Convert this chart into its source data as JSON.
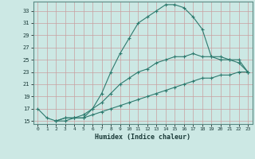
{
  "xlabel": "Humidex (Indice chaleur)",
  "background_color": "#cce8e4",
  "grid_color": "#b0d4d0",
  "line_color": "#2d7a6e",
  "xlim": [
    -0.5,
    23.5
  ],
  "ylim": [
    14.5,
    34.5
  ],
  "xticks": [
    0,
    1,
    2,
    3,
    4,
    5,
    6,
    7,
    8,
    9,
    10,
    11,
    12,
    13,
    14,
    15,
    16,
    17,
    18,
    19,
    20,
    21,
    22,
    23
  ],
  "yticks": [
    15,
    17,
    19,
    21,
    23,
    25,
    27,
    29,
    31,
    33
  ],
  "series1": [
    [
      0,
      17
    ],
    [
      1,
      15.5
    ],
    [
      2,
      15
    ],
    [
      3,
      15
    ],
    [
      4,
      15.5
    ],
    [
      5,
      15.5
    ],
    [
      6,
      17
    ],
    [
      7,
      19.5
    ],
    [
      8,
      23
    ],
    [
      9,
      26
    ],
    [
      10,
      28.5
    ],
    [
      11,
      31
    ],
    [
      12,
      32
    ],
    [
      13,
      33
    ],
    [
      14,
      34
    ],
    [
      15,
      34
    ],
    [
      16,
      33.5
    ],
    [
      17,
      32
    ],
    [
      18,
      30
    ],
    [
      19,
      25.5
    ],
    [
      20,
      25
    ],
    [
      21,
      25
    ],
    [
      22,
      24.5
    ],
    [
      23,
      23
    ]
  ],
  "series2": [
    [
      2,
      15
    ],
    [
      3,
      15.5
    ],
    [
      4,
      15.5
    ],
    [
      5,
      16
    ],
    [
      6,
      17
    ],
    [
      7,
      18
    ],
    [
      8,
      19.5
    ],
    [
      9,
      21
    ],
    [
      10,
      22
    ],
    [
      11,
      23
    ],
    [
      12,
      23.5
    ],
    [
      13,
      24.5
    ],
    [
      14,
      25
    ],
    [
      15,
      25.5
    ],
    [
      16,
      25.5
    ],
    [
      17,
      26
    ],
    [
      18,
      25.5
    ],
    [
      19,
      25.5
    ],
    [
      20,
      25.5
    ],
    [
      21,
      25
    ],
    [
      22,
      25
    ],
    [
      23,
      23
    ]
  ],
  "series3": [
    [
      2,
      15
    ],
    [
      3,
      15.5
    ],
    [
      4,
      15.5
    ],
    [
      5,
      15.5
    ],
    [
      6,
      16
    ],
    [
      7,
      16.5
    ],
    [
      8,
      17
    ],
    [
      9,
      17.5
    ],
    [
      10,
      18
    ],
    [
      11,
      18.5
    ],
    [
      12,
      19
    ],
    [
      13,
      19.5
    ],
    [
      14,
      20
    ],
    [
      15,
      20.5
    ],
    [
      16,
      21
    ],
    [
      17,
      21.5
    ],
    [
      18,
      22
    ],
    [
      19,
      22
    ],
    [
      20,
      22.5
    ],
    [
      21,
      22.5
    ],
    [
      22,
      23
    ],
    [
      23,
      23
    ]
  ]
}
